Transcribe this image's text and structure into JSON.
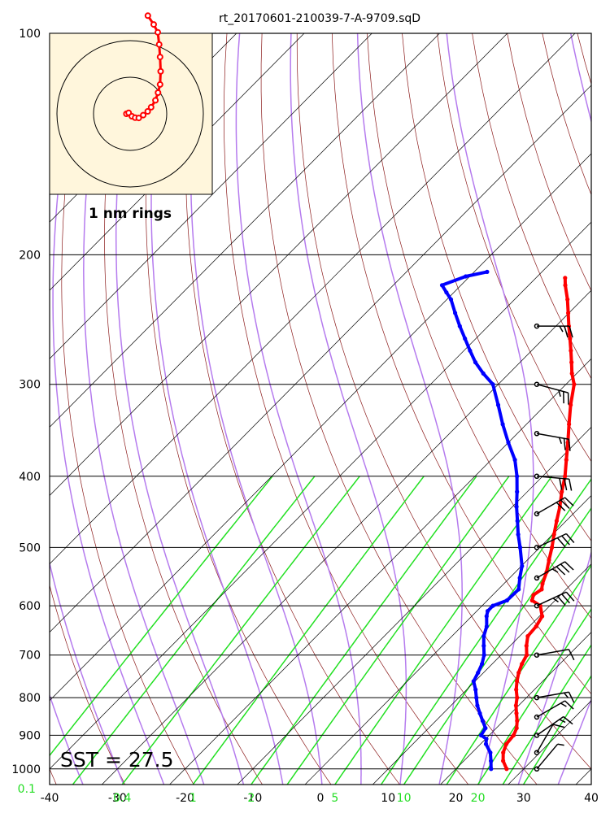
{
  "chart_data": {
    "type": "skew-t",
    "title": "rt_20170601-210039-7-A-9709.sqD",
    "xlim": [
      -40,
      40
    ],
    "ylim_hpa": [
      1000,
      100
    ],
    "grid": true,
    "pressure_ticks": [
      100,
      200,
      300,
      400,
      500,
      600,
      700,
      800,
      900,
      1000
    ],
    "pressure_tick_labels": [
      "100",
      "200",
      "300",
      "400",
      "500",
      "600",
      "700",
      "800",
      "900",
      "1000"
    ],
    "temp_ticks": [
      -40,
      -30,
      -20,
      -10,
      0,
      10,
      20,
      30,
      40
    ],
    "temp_tick_labels": [
      "-40",
      "-30",
      "-20",
      "-10",
      "0",
      "10",
      "20",
      "30",
      "40"
    ],
    "mixing_ratio_ticks": [
      0.1,
      0.4,
      1,
      2,
      5,
      10,
      20
    ],
    "mixing_ratio_labels": [
      "0.1",
      "0.4",
      "1",
      "2",
      "5",
      "10",
      "20"
    ],
    "annotation": "SST = 27.5",
    "temperature_series": {
      "color": "#ff0000",
      "points": [
        [
          1000,
          27.5
        ],
        [
          975,
          25.8
        ],
        [
          950,
          24.6
        ],
        [
          925,
          23.8
        ],
        [
          900,
          23.6
        ],
        [
          880,
          23.0
        ],
        [
          860,
          22.0
        ],
        [
          840,
          20.8
        ],
        [
          820,
          19.6
        ],
        [
          800,
          18.6
        ],
        [
          780,
          17.3
        ],
        [
          760,
          16.2
        ],
        [
          740,
          15.2
        ],
        [
          720,
          14.4
        ],
        [
          700,
          13.8
        ],
        [
          680,
          12.4
        ],
        [
          660,
          11.2
        ],
        [
          640,
          11.0
        ],
        [
          620,
          10.4
        ],
        [
          600,
          8.6
        ],
        [
          590,
          6.6
        ],
        [
          580,
          6.0
        ],
        [
          570,
          6.4
        ],
        [
          560,
          5.7
        ],
        [
          540,
          4.6
        ],
        [
          520,
          3.2
        ],
        [
          500,
          1.8
        ],
        [
          480,
          0.2
        ],
        [
          460,
          -1.4
        ],
        [
          440,
          -3.0
        ],
        [
          420,
          -4.9
        ],
        [
          400,
          -6.7
        ],
        [
          380,
          -8.9
        ],
        [
          360,
          -11.2
        ],
        [
          340,
          -13.7
        ],
        [
          320,
          -16.3
        ],
        [
          300,
          -18.8
        ],
        [
          290,
          -20.7
        ],
        [
          280,
          -22.4
        ],
        [
          270,
          -24.2
        ],
        [
          260,
          -26.1
        ],
        [
          250,
          -28.1
        ],
        [
          240,
          -30.1
        ],
        [
          230,
          -32.2
        ],
        [
          220,
          -34.6
        ],
        [
          215,
          -35.7
        ]
      ]
    },
    "dewpoint_series": {
      "color": "#0000ff",
      "points": [
        [
          1000,
          25.2
        ],
        [
          975,
          24.0
        ],
        [
          950,
          22.7
        ],
        [
          925,
          20.8
        ],
        [
          910,
          20.1
        ],
        [
          900,
          18.8
        ],
        [
          880,
          18.4
        ],
        [
          860,
          16.9
        ],
        [
          840,
          15.4
        ],
        [
          820,
          13.9
        ],
        [
          800,
          12.6
        ],
        [
          780,
          11.3
        ],
        [
          760,
          9.8
        ],
        [
          740,
          9.2
        ],
        [
          720,
          8.5
        ],
        [
          700,
          7.5
        ],
        [
          680,
          6.1
        ],
        [
          660,
          4.7
        ],
        [
          640,
          3.7
        ],
        [
          620,
          2.2
        ],
        [
          610,
          1.6
        ],
        [
          600,
          1.6
        ],
        [
          590,
          2.9
        ],
        [
          570,
          3.0
        ],
        [
          550,
          1.5
        ],
        [
          530,
          0.1
        ],
        [
          500,
          -2.9
        ],
        [
          480,
          -5.1
        ],
        [
          460,
          -7.2
        ],
        [
          440,
          -9.4
        ],
        [
          420,
          -11.5
        ],
        [
          400,
          -13.8
        ],
        [
          380,
          -16.5
        ],
        [
          360,
          -20.0
        ],
        [
          340,
          -23.5
        ],
        [
          320,
          -27.0
        ],
        [
          300,
          -30.8
        ],
        [
          290,
          -33.8
        ],
        [
          280,
          -36.6
        ],
        [
          270,
          -39.1
        ],
        [
          260,
          -41.6
        ],
        [
          250,
          -44.2
        ],
        [
          240,
          -46.8
        ],
        [
          230,
          -49.4
        ],
        [
          225,
          -51.1
        ],
        [
          220,
          -52.8
        ],
        [
          214,
          -50.6
        ],
        [
          211,
          -48.1
        ]
      ]
    },
    "wind_barbs": [
      {
        "p": 1000,
        "dir": 40,
        "kt": 5
      },
      {
        "p": 950,
        "dir": 30,
        "kt": 10
      },
      {
        "p": 900,
        "dir": 55,
        "kt": 15
      },
      {
        "p": 850,
        "dir": 60,
        "kt": 15
      },
      {
        "p": 800,
        "dir": 80,
        "kt": 15
      },
      {
        "p": 700,
        "dir": 80,
        "kt": 10
      },
      {
        "p": 600,
        "dir": 65,
        "kt": 35
      },
      {
        "p": 550,
        "dir": 60,
        "kt": 35
      },
      {
        "p": 500,
        "dir": 65,
        "kt": 30
      },
      {
        "p": 450,
        "dir": 60,
        "kt": 30
      },
      {
        "p": 400,
        "dir": 95,
        "kt": 30
      },
      {
        "p": 350,
        "dir": 100,
        "kt": 25
      },
      {
        "p": 300,
        "dir": 105,
        "kt": 25
      },
      {
        "p": 250,
        "dir": 90,
        "kt": 25
      }
    ],
    "hodograph_inset": {
      "label": "1 nm rings",
      "background": "#fff6dc",
      "track_color": "#ff0000",
      "points": [
        [
          -2,
          0
        ],
        [
          -0.8,
          0.5
        ],
        [
          0.9,
          -1.3
        ],
        [
          2.7,
          -2.1
        ],
        [
          4.6,
          -2.2
        ],
        [
          7.0,
          -0.7
        ],
        [
          9.4,
          1.3
        ],
        [
          11.2,
          3.5
        ],
        [
          13.5,
          7.2
        ],
        [
          14.9,
          11.3
        ],
        [
          16.0,
          15.7
        ],
        [
          16.3,
          22.7
        ],
        [
          16.0,
          30.4
        ],
        [
          15.5,
          37.1
        ],
        [
          14.8,
          43.6
        ],
        [
          12.6,
          47.8
        ],
        [
          9.5,
          52.5
        ]
      ]
    }
  }
}
